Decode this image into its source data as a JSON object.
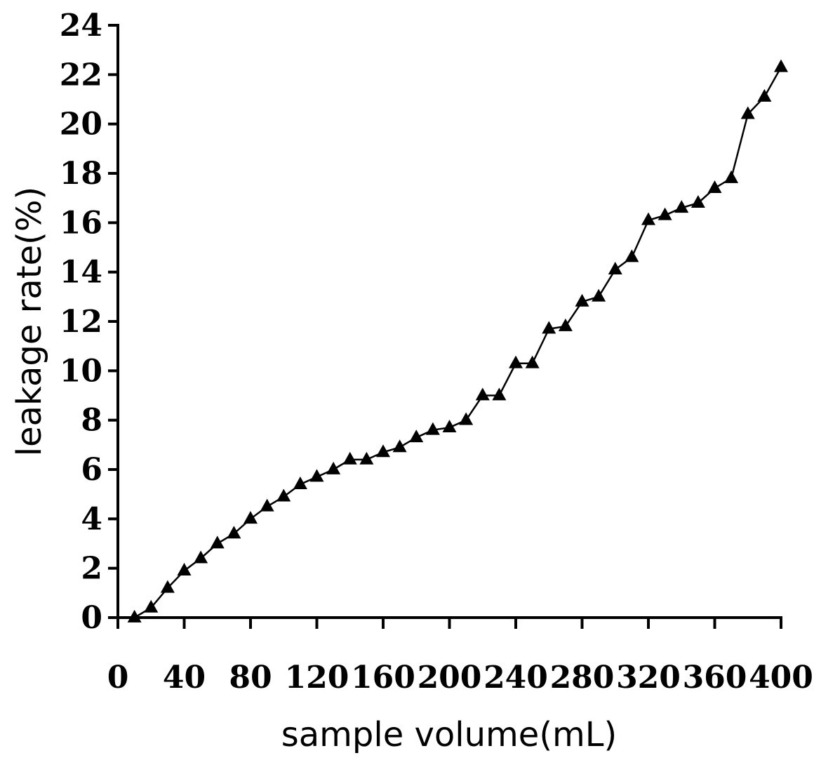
{
  "chart_data": {
    "type": "line",
    "title": "",
    "xlabel": "sample volume(mL)",
    "ylabel": "leakage rate(%)",
    "xlim": [
      0,
      400
    ],
    "ylim": [
      0,
      24
    ],
    "x_ticks": [
      "0",
      "40",
      "80",
      "120",
      "160",
      "200",
      "240",
      "280",
      "320",
      "360",
      "400"
    ],
    "y_ticks": [
      "0",
      "2",
      "4",
      "6",
      "8",
      "10",
      "12",
      "14",
      "16",
      "18",
      "20",
      "22",
      "24"
    ],
    "grid": false,
    "legend": "none",
    "marker": "triangle",
    "color": "#000000",
    "series": [
      {
        "x": [
          10,
          20,
          30,
          40,
          50,
          60,
          70,
          80,
          90,
          100,
          110,
          120,
          130,
          140,
          150,
          160,
          170,
          180,
          190,
          200,
          210,
          220,
          230,
          240,
          250,
          260,
          270,
          280,
          290,
          300,
          310,
          320,
          330,
          340,
          350,
          360,
          370,
          380,
          390,
          400
        ],
        "values": [
          0.0,
          0.4,
          1.2,
          1.9,
          2.4,
          3.0,
          3.4,
          4.0,
          4.5,
          4.9,
          5.4,
          5.7,
          6.0,
          6.4,
          6.4,
          6.7,
          6.9,
          7.3,
          7.6,
          7.7,
          8.0,
          9.0,
          9.0,
          10.3,
          10.3,
          11.7,
          11.8,
          12.8,
          13.0,
          14.1,
          14.6,
          16.1,
          16.3,
          16.6,
          16.8,
          17.4,
          17.8,
          20.4,
          21.1,
          22.3
        ]
      }
    ]
  }
}
